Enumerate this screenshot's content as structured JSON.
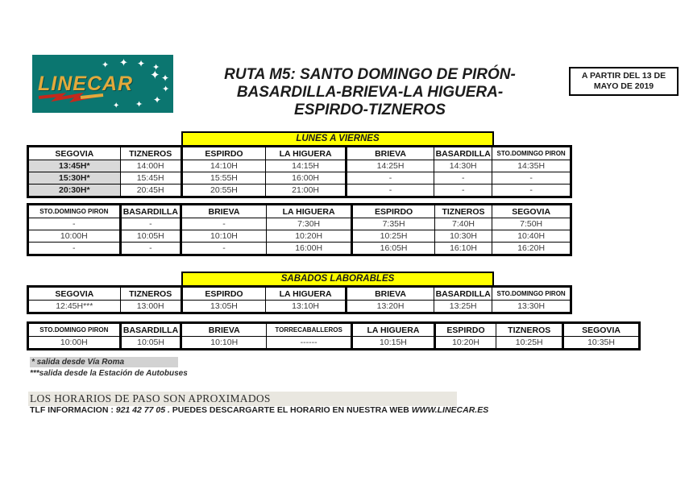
{
  "logo": {
    "text": "LINECAR"
  },
  "validity": {
    "line1": "A PARTIR DEL 13 DE",
    "line2": "MAYO DE 2019"
  },
  "title": {
    "lines": [
      "RUTA M5: SANTO DOMINGO DE PIRÓN-",
      "BASARDILLA-BRIEVA-LA HIGUERA-",
      "ESPIRDO-TIZNEROS"
    ]
  },
  "banners": {
    "weekdays": "LUNES A VIERNES",
    "saturdays": "SABADOS LABORABLES"
  },
  "tables": [
    {
      "name": "weekday-outbound",
      "headers": [
        "SEGOVIA",
        "TIZNEROS",
        "ESPIRDO",
        "LA HIGUERA",
        "BRIEVA",
        "BASARDILLA",
        "STO.DOMINGO PIRON"
      ],
      "rows": [
        [
          "13:45H*",
          "14:00H",
          "14:10H",
          "14:15H",
          "14:25H",
          "14:30H",
          "14:35H"
        ],
        [
          "15:30H*",
          "15:45H",
          "15:55H",
          "16:00H",
          "-",
          "-",
          "-"
        ],
        [
          "20:30H*",
          "20:45H",
          "20:55H",
          "21:00H",
          "-",
          "-",
          "-"
        ]
      ]
    },
    {
      "name": "weekday-return",
      "headers": [
        "STO.DOMINGO PIRON",
        "BASARDILLA",
        "BRIEVA",
        "LA HIGUERA",
        "ESPIRDO",
        "TIZNEROS",
        "SEGOVIA"
      ],
      "rows": [
        [
          "-",
          "-",
          "-",
          "7:30H",
          "7:35H",
          "7:40H",
          "7:50H"
        ],
        [
          "10:00H",
          "10:05H",
          "10:10H",
          "10:20H",
          "10:25H",
          "10:30H",
          "10:40H"
        ],
        [
          "-",
          "-",
          "-",
          "16:00H",
          "16:05H",
          "16:10H",
          "16:20H"
        ]
      ]
    },
    {
      "name": "saturday-outbound",
      "headers": [
        "SEGOVIA",
        "TIZNEROS",
        "ESPIRDO",
        "LA HIGUERA",
        "BRIEVA",
        "BASARDILLA",
        "STO.DOMINGO PIRON"
      ],
      "rows": [
        [
          "12:45H***",
          "13:00H",
          "13:05H",
          "13:10H",
          "13:20H",
          "13:25H",
          "13:30H"
        ]
      ]
    },
    {
      "name": "saturday-return",
      "headers": [
        "STO.DOMINGO PIRON",
        "BASARDILLA",
        "BRIEVA",
        "TORRECABALLEROS",
        "LA HIGUERA",
        "ESPIRDO",
        "TIZNEROS",
        "SEGOVIA"
      ],
      "rows": [
        [
          "10:00H",
          "10:05H",
          "10:10H",
          "------",
          "10:15H",
          "10:20H",
          "10:25H",
          "10:35H"
        ]
      ]
    }
  ],
  "notes": {
    "note1": "* salida desde Vía Roma",
    "note2": "***salida desde la Estación de Autobuses"
  },
  "footer": {
    "line1": "LOS HORARIOS DE PASO SON APROXIMADOS",
    "tlf_prefix": "TLF INFORMACION : ",
    "phone": "921 42 77 05 .",
    "middle": "  PUEDES DESCARGARTE EL HORARIO EN NUESTRA WEB ",
    "website": "WWW.LINECAR.ES"
  },
  "colors": {
    "logo_teal": "#0b7670",
    "logo_gold": "#e2a93c",
    "logo_red": "#c4281c",
    "banner_yellow": "#ffff00",
    "shade_gray": "#d9d9d9",
    "highlight_light": "#e9e7e0"
  }
}
